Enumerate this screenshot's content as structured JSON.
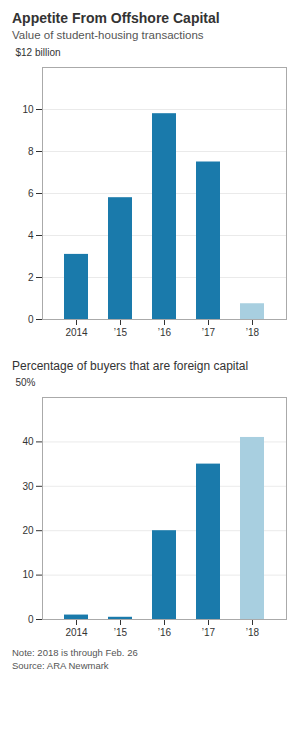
{
  "chart_data": [
    {
      "type": "bar",
      "title": "Appetite From Offshore Capital",
      "subtitle": "Value of student-housing transactions",
      "ylabel": "$12 billion",
      "categories": [
        "2014",
        "’15",
        "’16",
        "’17",
        "’18"
      ],
      "values": [
        3.1,
        5.8,
        9.8,
        7.5,
        0.75
      ],
      "colors": [
        "#1a7aab",
        "#1a7aab",
        "#1a7aab",
        "#1a7aab",
        "#a8cfe0"
      ],
      "ylim": [
        0,
        12
      ],
      "yticks": [
        0,
        2,
        4,
        6,
        8,
        10
      ],
      "grid": true
    },
    {
      "type": "bar",
      "title": "Percentage of buyers that are foreign capital",
      "ylabel": "50%",
      "categories": [
        "2014",
        "’15",
        "’16",
        "’17",
        "’18"
      ],
      "values": [
        1.0,
        0.5,
        20.0,
        35.0,
        41.0
      ],
      "colors": [
        "#1a7aab",
        "#1a7aab",
        "#1a7aab",
        "#1a7aab",
        "#a8cfe0"
      ],
      "ylim": [
        0,
        50
      ],
      "yticks": [
        0,
        10,
        20,
        30,
        40
      ],
      "grid": true
    }
  ],
  "note": "Note: 2018 is through Feb. 26",
  "source": "Source: ARA Newmark"
}
